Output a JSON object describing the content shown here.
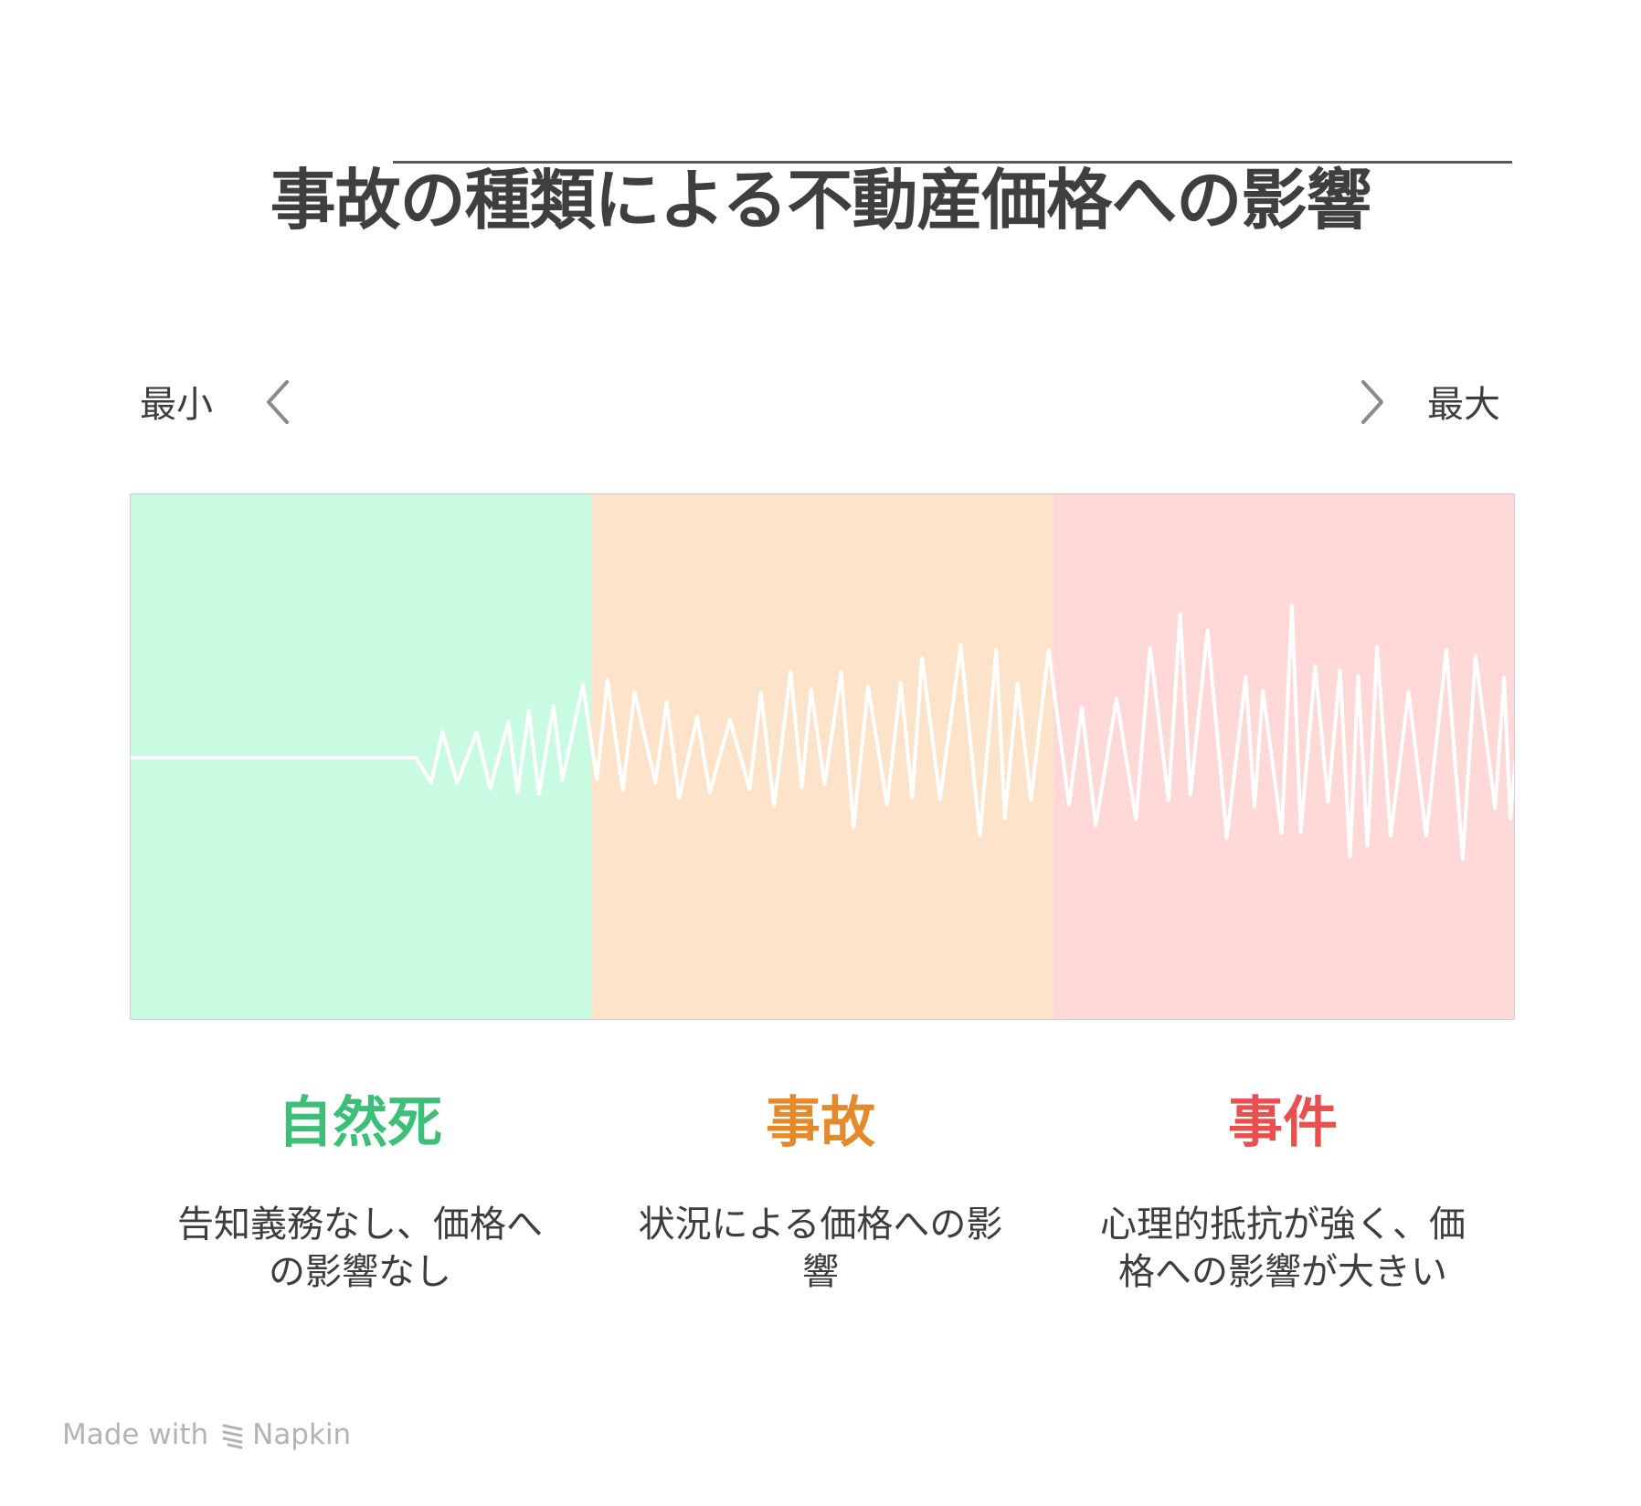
{
  "title": "事故の種類による不動産価格への影響",
  "scale": {
    "min_label": "最小",
    "max_label": "最大"
  },
  "categories": [
    {
      "title": "自然死",
      "description": "告知義務なし、価格への影響なし",
      "color": "#3dbf7a",
      "bg": "#c9fbe3"
    },
    {
      "title": "事故",
      "description": "状況による価格への影響",
      "color": "#e58a2c",
      "bg": "#fde3c9"
    },
    {
      "title": "事件",
      "description": "心理的抵抗が強く、価格への影響が大きい",
      "color": "#e94f4f",
      "bg": "#ffd8d8"
    }
  ],
  "footer": {
    "made_with": "Made with",
    "brand": "Napkin"
  }
}
